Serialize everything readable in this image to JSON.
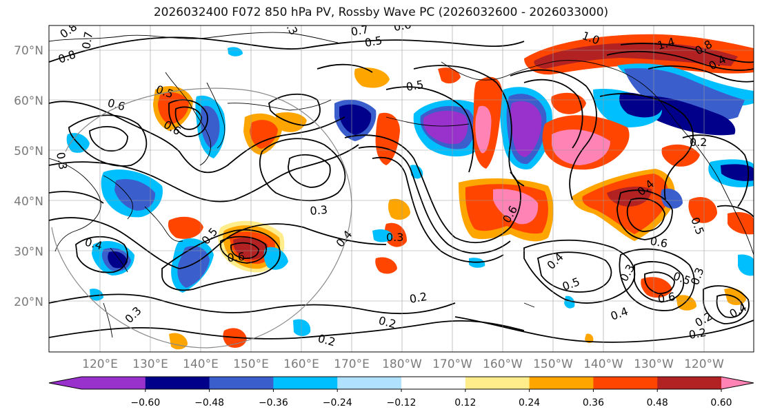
{
  "title": "2026032400 F072 850 hPa PV, Rossby Wave PC (2026032600 - 2026033000)",
  "lat_labels": [
    "70°N",
    "60°N",
    "50°N",
    "40°N",
    "30°N",
    "20°N"
  ],
  "lon_labels": [
    "120°E",
    "130°E",
    "140°E",
    "150°E",
    "160°E",
    "170°E",
    "180°W",
    "170°W",
    "160°W",
    "150°W",
    "140°W",
    "130°W",
    "120°W"
  ],
  "colorbar": {
    "tick_labels": [
      "−0.60",
      "−0.48",
      "−0.36",
      "−0.24",
      "−0.12",
      "0.12",
      "0.24",
      "0.36",
      "0.48",
      "0.60"
    ],
    "colors": [
      "#9932CC",
      "#00008B",
      "#3A5FCD",
      "#00BFFF",
      "#B0E2FF",
      "#FFFFFF",
      "#FFEC8B",
      "#FFA500",
      "#FF4500",
      "#B22222",
      "#FF83B4",
      "#FF83B4"
    ]
  },
  "contour_labels": [
    "0.8",
    "0.7",
    "0.8",
    "0.6",
    "0.5",
    "0.6",
    "0.7",
    "1.0",
    "1.4",
    "0.8",
    "0.4",
    "0.5",
    "0.6",
    "0.3",
    "0.3",
    "0.4",
    "0.3",
    "0.4",
    "0.5",
    "0.6",
    "0.3",
    "0.2",
    "0.2",
    "0.2",
    "0.4",
    "0.5",
    "0.6",
    "0.3",
    "0.6",
    "0.4",
    "0.5",
    "0.3",
    "0.4",
    "0.2",
    "0.2",
    "0.5",
    "0.4",
    "0.6",
    "0.2",
    "0.5",
    "0.3"
  ]
}
